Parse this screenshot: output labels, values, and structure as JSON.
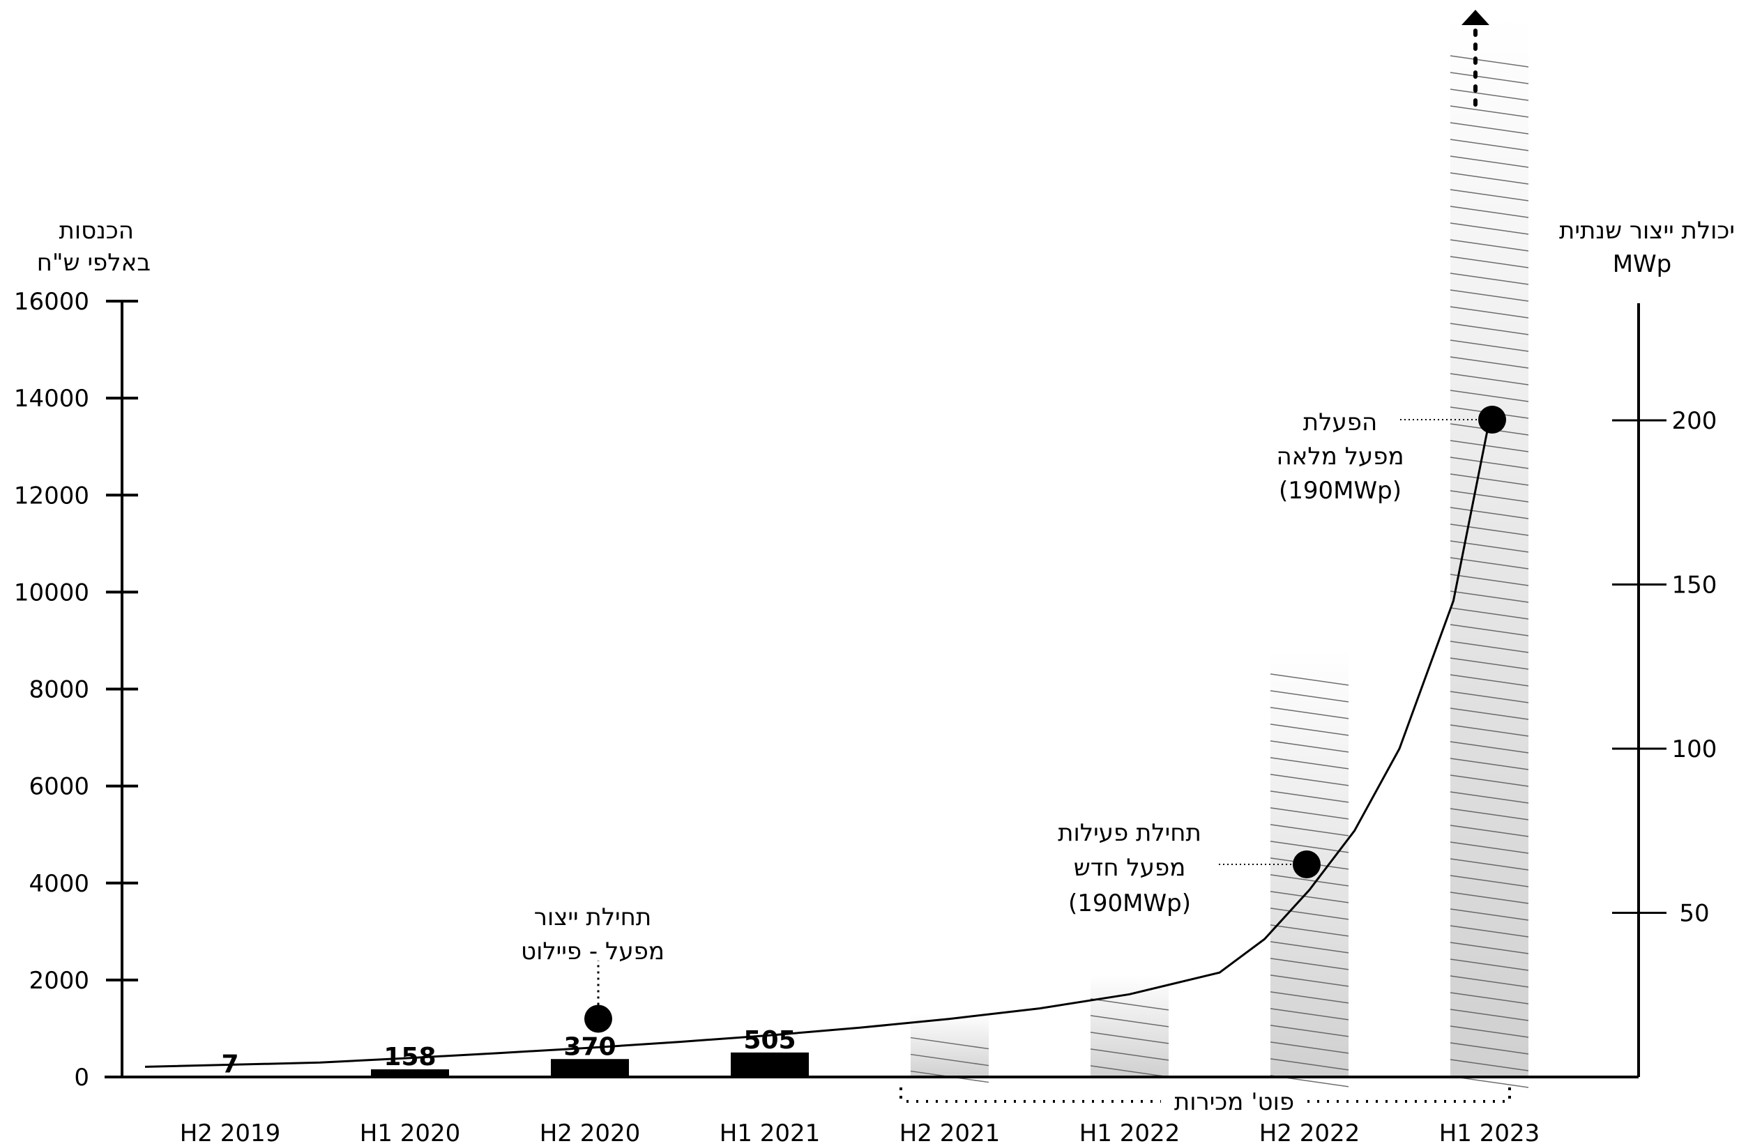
{
  "chart_data": {
    "type": "bar",
    "categories": [
      "H2 2019",
      "H1 2020",
      "H2 2020",
      "H1 2021",
      "H2 2021",
      "H1 2022",
      "H2 2022",
      "H1 2023"
    ],
    "revenue": {
      "axis_title": "הכנסות",
      "axis_unit": "באלפי ש\"ח",
      "ylim": [
        0,
        16000
      ],
      "ticks": [
        0,
        2000,
        4000,
        6000,
        8000,
        10000,
        12000,
        14000,
        16000
      ],
      "values": [
        7,
        158,
        370,
        505,
        null,
        null,
        null,
        null
      ],
      "value_labels": [
        "7",
        "158",
        "370",
        "505",
        "",
        "",
        "",
        ""
      ]
    },
    "sales_potential": {
      "label": "פוט' מכירות",
      "approx_values": [
        null,
        null,
        null,
        null,
        1300,
        2100,
        8800,
        22500
      ],
      "last_bar_open_ended": true
    },
    "capacity": {
      "axis_title": "יכולת ייצור שנתית",
      "axis_unit": "MWp",
      "ylim": [
        0,
        233
      ],
      "ticks": [
        50,
        100,
        150,
        200
      ],
      "curve_x": [
        0,
        0.5,
        1,
        1.5,
        2,
        2.5,
        3,
        3.5,
        4,
        4.5,
        5,
        5.5,
        5.75,
        6,
        6.25,
        6.5,
        6.8,
        7
      ],
      "curve_y": [
        3.1,
        4.4,
        5.8,
        7.3,
        8.9,
        10.7,
        12.7,
        15,
        17.7,
        20.9,
        25.2,
        31.8,
        42,
        57,
        75,
        100,
        145,
        200
      ]
    },
    "milestones": [
      {
        "x": 2,
        "y_revenue": 1200,
        "label_line1": "תחילת ייצור",
        "label_line2": "מפעל - פיילוט",
        "label_line3": ""
      },
      {
        "x": 6,
        "y_capacity": 64,
        "label_line1": "תחילת פעילות",
        "label_line2": "מפעל חדש",
        "label_line3": "(190MWp)"
      },
      {
        "x": 7,
        "y_capacity": 200,
        "label_line1": "הפעלת",
        "label_line2": "מפעל מלאה",
        "label_line3": "(190MWp)"
      }
    ],
    "grid": false,
    "legend": "none"
  }
}
